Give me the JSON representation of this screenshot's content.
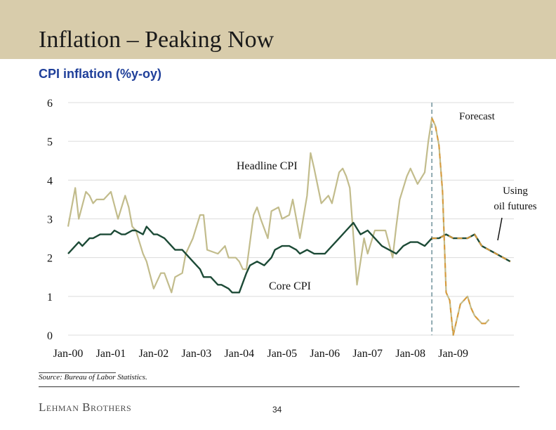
{
  "slide": {
    "title": "Inflation – Peaking Now",
    "subtitle": "CPI inflation (%y-oy)",
    "source": "Source: Bureau of Labor Statistics.",
    "brand": "Lehman Brothers",
    "page_number": "34"
  },
  "colors": {
    "header_band": "#d8ccab",
    "headline": "#c2bc8c",
    "core": "#1c4a36",
    "forecast": "#d99a3a",
    "divider": "#8fa9b1",
    "subtitle": "#1f3f9a"
  },
  "chart_data": {
    "type": "line",
    "x_tick_labels": [
      "Jan-00",
      "Jan-01",
      "Jan-02",
      "Jan-03",
      "Jan-04",
      "Jan-05",
      "Jan-06",
      "Jan-07",
      "Jan-08",
      "Jan-09"
    ],
    "y_ticks": [
      0,
      1,
      2,
      3,
      4,
      5,
      6
    ],
    "ylim": [
      0,
      6
    ],
    "xlim": [
      "2000-01",
      "2010-06"
    ],
    "grid": "horizontal",
    "forecast_start": "2008-07",
    "series": [
      {
        "name": "Headline CPI",
        "x": [
          "2000-01",
          "2000-03",
          "2000-04",
          "2000-06",
          "2000-07",
          "2000-08",
          "2000-09",
          "2000-10",
          "2000-11",
          "2001-01",
          "2001-03",
          "2001-05",
          "2001-06",
          "2001-07",
          "2001-08",
          "2001-10",
          "2001-11",
          "2002-01",
          "2002-03",
          "2002-04",
          "2002-06",
          "2002-07",
          "2002-09",
          "2002-10",
          "2002-12",
          "2003-02",
          "2003-03",
          "2003-04",
          "2003-07",
          "2003-09",
          "2003-10",
          "2003-12",
          "2004-01",
          "2004-02",
          "2004-03",
          "2004-05",
          "2004-06",
          "2004-07",
          "2004-09",
          "2004-10",
          "2004-12",
          "2005-01",
          "2005-03",
          "2005-04",
          "2005-06",
          "2005-08",
          "2005-09",
          "2005-10",
          "2005-12",
          "2006-02",
          "2006-03",
          "2006-05",
          "2006-06",
          "2006-07",
          "2006-08",
          "2006-10",
          "2006-12",
          "2007-01",
          "2007-02",
          "2007-03",
          "2007-05",
          "2007-06",
          "2007-08",
          "2007-09",
          "2007-10",
          "2007-12",
          "2008-01",
          "2008-03",
          "2008-05",
          "2008-06",
          "2008-07",
          "2008-08",
          "2008-09",
          "2008-10",
          "2008-11",
          "2008-12",
          "2009-01",
          "2009-03",
          "2009-04",
          "2009-05",
          "2009-06",
          "2009-07",
          "2009-08",
          "2009-09",
          "2009-10",
          "2009-11"
        ],
        "y": [
          2.8,
          3.8,
          3.0,
          3.7,
          3.6,
          3.4,
          3.5,
          3.5,
          3.5,
          3.7,
          3.0,
          3.6,
          3.3,
          2.8,
          2.7,
          2.1,
          1.9,
          1.2,
          1.6,
          1.6,
          1.1,
          1.5,
          1.6,
          2.1,
          2.5,
          3.1,
          3.1,
          2.2,
          2.1,
          2.3,
          2.0,
          2.0,
          1.9,
          1.7,
          1.7,
          3.1,
          3.3,
          3.0,
          2.5,
          3.2,
          3.3,
          3.0,
          3.1,
          3.5,
          2.5,
          3.6,
          4.7,
          4.3,
          3.4,
          3.6,
          3.4,
          4.2,
          4.3,
          4.1,
          3.8,
          1.3,
          2.5,
          2.1,
          2.4,
          2.7,
          2.7,
          2.7,
          2.0,
          2.8,
          3.5,
          4.1,
          4.3,
          3.9,
          4.2,
          5.0,
          5.6,
          5.4,
          4.9,
          3.7,
          1.1,
          0.9,
          0.0,
          0.8,
          0.9,
          1.0,
          0.7,
          0.5,
          0.4,
          0.3,
          0.3,
          0.4
        ],
        "notes": "forecast from 2008-07 onward"
      },
      {
        "name": "Core CPI",
        "x": [
          "2000-01",
          "2000-02",
          "2000-04",
          "2000-05",
          "2000-07",
          "2000-08",
          "2000-10",
          "2000-11",
          "2001-01",
          "2001-02",
          "2001-04",
          "2001-05",
          "2001-07",
          "2001-08",
          "2001-10",
          "2001-11",
          "2002-01",
          "2002-02",
          "2002-04",
          "2002-06",
          "2002-07",
          "2002-09",
          "2002-10",
          "2002-12",
          "2003-02",
          "2003-03",
          "2003-05",
          "2003-07",
          "2003-08",
          "2003-10",
          "2003-11",
          "2004-01",
          "2004-03",
          "2004-04",
          "2004-06",
          "2004-08",
          "2004-10",
          "2004-11",
          "2005-01",
          "2005-03",
          "2005-05",
          "2005-06",
          "2005-08",
          "2005-10",
          "2005-11",
          "2006-01",
          "2006-03",
          "2006-05",
          "2006-07",
          "2006-09",
          "2006-11",
          "2007-01",
          "2007-03",
          "2007-05",
          "2007-07",
          "2007-09",
          "2007-11",
          "2008-01",
          "2008-03",
          "2008-05",
          "2008-07",
          "2008-09",
          "2008-11",
          "2009-01",
          "2009-03",
          "2009-05",
          "2009-07",
          "2009-09",
          "2009-11",
          "2010-01",
          "2010-03",
          "2010-05"
        ],
        "y": [
          2.1,
          2.2,
          2.4,
          2.3,
          2.5,
          2.5,
          2.6,
          2.6,
          2.6,
          2.7,
          2.6,
          2.6,
          2.7,
          2.7,
          2.6,
          2.8,
          2.6,
          2.6,
          2.5,
          2.3,
          2.2,
          2.2,
          2.1,
          1.9,
          1.7,
          1.5,
          1.5,
          1.3,
          1.3,
          1.2,
          1.1,
          1.1,
          1.6,
          1.8,
          1.9,
          1.8,
          2.0,
          2.2,
          2.3,
          2.3,
          2.2,
          2.1,
          2.2,
          2.1,
          2.1,
          2.1,
          2.3,
          2.5,
          2.7,
          2.9,
          2.6,
          2.7,
          2.5,
          2.3,
          2.2,
          2.1,
          2.3,
          2.4,
          2.4,
          2.3,
          2.5,
          2.5,
          2.6,
          2.5,
          2.5,
          2.5,
          2.6,
          2.3,
          2.2,
          2.1,
          2.0,
          1.9
        ],
        "notes": "forecast from 2008-07 onward"
      }
    ],
    "annotations": [
      "Forecast",
      "Headline CPI",
      "Core CPI",
      "Using oil futures"
    ]
  }
}
